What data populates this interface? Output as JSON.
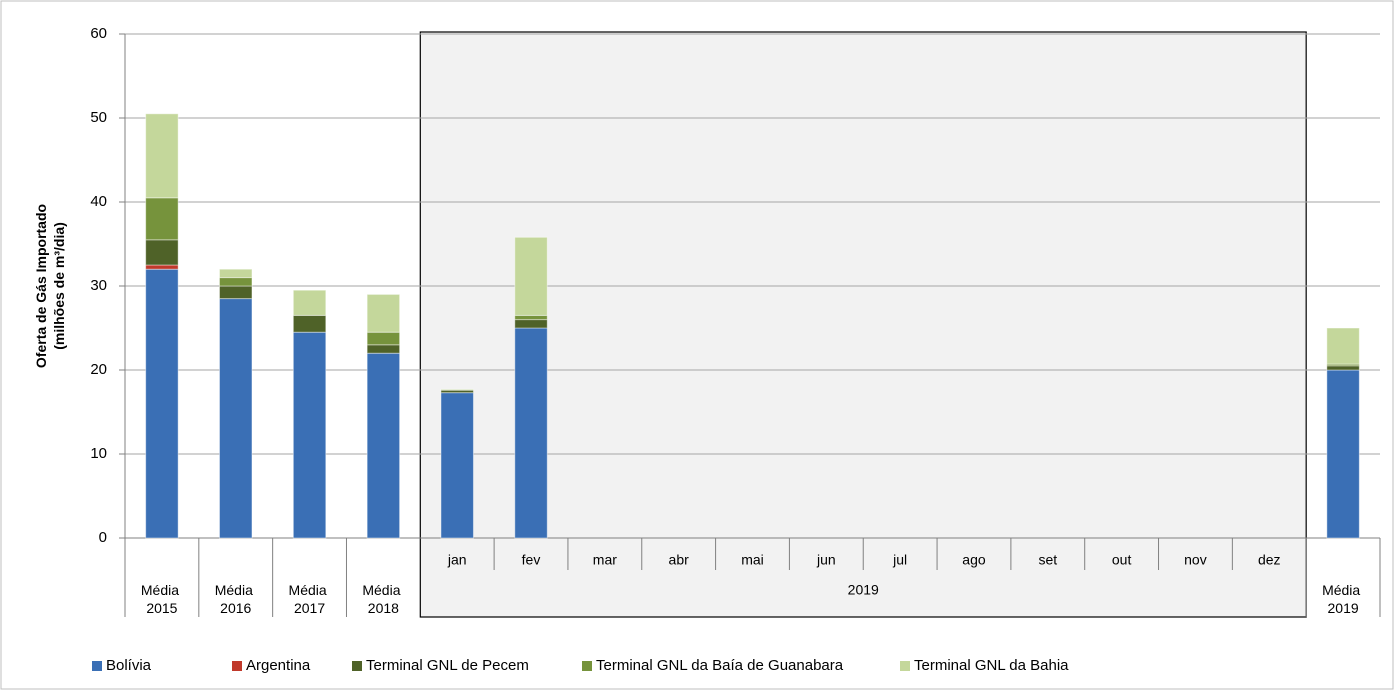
{
  "chart_data": {
    "type": "stacked_bar",
    "y_label": [
      "Oferta de Gás Importado",
      "(milhões de m³/dia)"
    ],
    "categories": [
      "Média 2015",
      "Média 2016",
      "Média 2017",
      "Média 2018",
      "jan",
      "fev",
      "mar",
      "abr",
      "mai",
      "jun",
      "jul",
      "ago",
      "set",
      "out",
      "nov",
      "dez",
      "Média 2019"
    ],
    "group_label": "2019",
    "series": [
      {
        "name": "Bolívia",
        "color": "#3a6fb5",
        "values": [
          32,
          28.5,
          24.5,
          22,
          17.3,
          25,
          null,
          null,
          null,
          null,
          null,
          null,
          null,
          null,
          null,
          null,
          20
        ]
      },
      {
        "name": "Argentina",
        "color": "#c0392b",
        "values": [
          0.5,
          0,
          0,
          0,
          0,
          0,
          null,
          null,
          null,
          null,
          null,
          null,
          null,
          null,
          null,
          null,
          0
        ]
      },
      {
        "name": "Terminal GNL de Pecem",
        "color": "#4f6228",
        "values": [
          3,
          1.5,
          2,
          1,
          0.3,
          1,
          null,
          null,
          null,
          null,
          null,
          null,
          null,
          null,
          null,
          null,
          0.5
        ]
      },
      {
        "name": "Terminal GNL da Baía de Guanabara",
        "color": "#76933c",
        "values": [
          5,
          1,
          0,
          1.5,
          0,
          0.5,
          null,
          null,
          null,
          null,
          null,
          null,
          null,
          null,
          null,
          null,
          0.2
        ]
      },
      {
        "name": "Terminal GNL da Bahia",
        "color": "#c4d79b",
        "values": [
          10,
          1,
          3,
          4.5,
          0.1,
          9.3,
          null,
          null,
          null,
          null,
          null,
          null,
          null,
          null,
          null,
          null,
          4.3
        ]
      }
    ],
    "ylim": [
      0,
      60
    ],
    "yticks": [
      0,
      10,
      20,
      30,
      40,
      50,
      60
    ],
    "grid": true,
    "legend": "bottom"
  }
}
